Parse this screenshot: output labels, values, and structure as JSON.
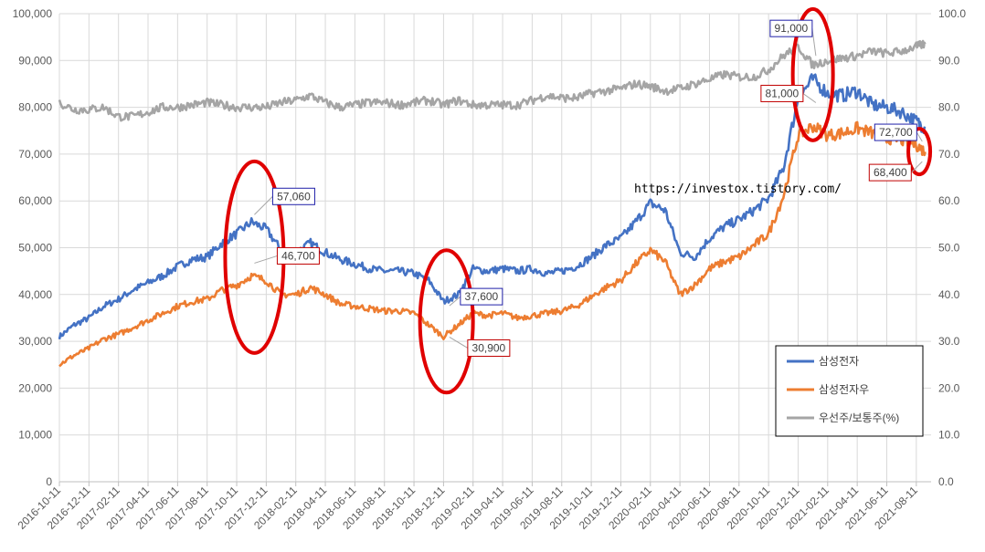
{
  "chart_data": {
    "type": "line",
    "watermark": "https://investox.tistory.com/",
    "x_ticks": [
      "2016-10-11",
      "2016-12-11",
      "2017-02-11",
      "2017-04-11",
      "2017-06-11",
      "2017-08-11",
      "2017-10-11",
      "2017-12-11",
      "2018-02-11",
      "2018-04-11",
      "2018-06-11",
      "2018-08-11",
      "2018-10-11",
      "2018-12-11",
      "2019-02-11",
      "2019-04-11",
      "2019-06-11",
      "2019-08-11",
      "2019-10-11",
      "2019-12-11",
      "2020-02-11",
      "2020-04-11",
      "2020-06-11",
      "2020-08-11",
      "2020-10-11",
      "2020-12-11",
      "2021-02-11",
      "2021-04-11",
      "2021-06-11",
      "2021-08-11"
    ],
    "y_left": {
      "min": 0,
      "max": 100000,
      "step": 10000,
      "tick_labels": [
        "0",
        "10,000",
        "20,000",
        "30,000",
        "40,000",
        "50,000",
        "60,000",
        "70,000",
        "80,000",
        "90,000",
        "100,000"
      ]
    },
    "y_right": {
      "min": 0,
      "max": 100,
      "step": 10,
      "tick_labels": [
        "0.0",
        "10.0",
        "20.0",
        "30.0",
        "40.0",
        "50.0",
        "60.0",
        "70.0",
        "80.0",
        "90.0",
        "100.0"
      ]
    },
    "grid": true,
    "legend_position": "bottom-right",
    "series": [
      {
        "name": "삼성전자",
        "axis": "left",
        "color": "#4472c4",
        "points": [
          [
            0,
            31000
          ],
          [
            0.5,
            33500
          ],
          [
            1,
            35000
          ],
          [
            1.5,
            37500
          ],
          [
            2,
            39000
          ],
          [
            2.5,
            41000
          ],
          [
            3,
            42500
          ],
          [
            3.5,
            44000
          ],
          [
            4,
            46000
          ],
          [
            4.5,
            47500
          ],
          [
            5,
            48000
          ],
          [
            5.5,
            51000
          ],
          [
            6,
            53000
          ],
          [
            6.5,
            55500
          ],
          [
            7,
            54000
          ],
          [
            7.5,
            49500
          ],
          [
            8,
            49000
          ],
          [
            8.5,
            51000
          ],
          [
            9,
            49000
          ],
          [
            9.5,
            47500
          ],
          [
            10,
            46500
          ],
          [
            10.5,
            45500
          ],
          [
            11,
            45000
          ],
          [
            11.5,
            45000
          ],
          [
            12,
            44500
          ],
          [
            12.5,
            43000
          ],
          [
            13,
            38500
          ],
          [
            13.5,
            40000
          ],
          [
            14,
            45500
          ],
          [
            14.5,
            45000
          ],
          [
            15,
            45500
          ],
          [
            15.5,
            45000
          ],
          [
            16,
            45500
          ],
          [
            16.5,
            44500
          ],
          [
            17,
            45000
          ],
          [
            17.5,
            46000
          ],
          [
            18,
            48000
          ],
          [
            18.5,
            50500
          ],
          [
            19,
            52000
          ],
          [
            19.5,
            55500
          ],
          [
            20,
            59500
          ],
          [
            20.5,
            58000
          ],
          [
            21,
            49000
          ],
          [
            21.5,
            48000
          ],
          [
            22,
            52000
          ],
          [
            22.5,
            54500
          ],
          [
            23,
            56000
          ],
          [
            23.5,
            58000
          ],
          [
            24,
            60500
          ],
          [
            24.5,
            67000
          ],
          [
            25,
            82000
          ],
          [
            25.5,
            86000
          ],
          [
            26,
            83000
          ],
          [
            26.5,
            82500
          ],
          [
            27,
            83500
          ],
          [
            27.5,
            80500
          ],
          [
            28,
            80000
          ],
          [
            28.5,
            79000
          ],
          [
            29,
            77000
          ],
          [
            29.3,
            75500
          ]
        ]
      },
      {
        "name": "삼성전자우",
        "axis": "left",
        "color": "#ed7d31",
        "points": [
          [
            0,
            25000
          ],
          [
            0.5,
            27000
          ],
          [
            1,
            28500
          ],
          [
            1.5,
            30500
          ],
          [
            2,
            31500
          ],
          [
            2.5,
            33000
          ],
          [
            3,
            34500
          ],
          [
            3.5,
            36000
          ],
          [
            4,
            37500
          ],
          [
            4.5,
            38500
          ],
          [
            5,
            39000
          ],
          [
            5.5,
            41000
          ],
          [
            6,
            42000
          ],
          [
            6.5,
            44000
          ],
          [
            7,
            43000
          ],
          [
            7.5,
            40000
          ],
          [
            8,
            40000
          ],
          [
            8.5,
            41500
          ],
          [
            9,
            40000
          ],
          [
            9.5,
            38000
          ],
          [
            10,
            37500
          ],
          [
            10.5,
            37000
          ],
          [
            11,
            36500
          ],
          [
            11.5,
            36500
          ],
          [
            12,
            36000
          ],
          [
            12.5,
            33500
          ],
          [
            13,
            31000
          ],
          [
            13.5,
            33500
          ],
          [
            14,
            36000
          ],
          [
            14.5,
            35500
          ],
          [
            15,
            36000
          ],
          [
            15.5,
            35000
          ],
          [
            16,
            35500
          ],
          [
            16.5,
            36000
          ],
          [
            17,
            36500
          ],
          [
            17.5,
            37500
          ],
          [
            18,
            39500
          ],
          [
            18.5,
            41500
          ],
          [
            19,
            43000
          ],
          [
            19.5,
            46500
          ],
          [
            20,
            49500
          ],
          [
            20.5,
            47000
          ],
          [
            21,
            40000
          ],
          [
            21.5,
            42000
          ],
          [
            22,
            45500
          ],
          [
            22.5,
            47000
          ],
          [
            23,
            48000
          ],
          [
            23.5,
            50500
          ],
          [
            24,
            53000
          ],
          [
            24.5,
            61000
          ],
          [
            25,
            74000
          ],
          [
            25.5,
            76000
          ],
          [
            26,
            74000
          ],
          [
            26.5,
            74500
          ],
          [
            27,
            75500
          ],
          [
            27.5,
            74500
          ],
          [
            28,
            73500
          ],
          [
            28.5,
            73000
          ],
          [
            29,
            72000
          ],
          [
            29.3,
            70500
          ]
        ]
      },
      {
        "name": "우선주/보통주(%)",
        "axis": "right",
        "color": "#a5a5a5",
        "points": [
          [
            0,
            81
          ],
          [
            0.5,
            79.5
          ],
          [
            1,
            79.5
          ],
          [
            1.5,
            80
          ],
          [
            2,
            78
          ],
          [
            2.5,
            78
          ],
          [
            3,
            79
          ],
          [
            3.5,
            80
          ],
          [
            4,
            80
          ],
          [
            4.5,
            80.5
          ],
          [
            5,
            81
          ],
          [
            5.5,
            80.5
          ],
          [
            6,
            80
          ],
          [
            6.5,
            80
          ],
          [
            7,
            80
          ],
          [
            7.5,
            81
          ],
          [
            8,
            81.5
          ],
          [
            8.5,
            82.5
          ],
          [
            9,
            81
          ],
          [
            9.5,
            80
          ],
          [
            10,
            80.5
          ],
          [
            10.5,
            81
          ],
          [
            11,
            81
          ],
          [
            11.5,
            80.5
          ],
          [
            12,
            81
          ],
          [
            12.5,
            81.5
          ],
          [
            13,
            80.5
          ],
          [
            13.5,
            81.5
          ],
          [
            14,
            80.5
          ],
          [
            14.5,
            80.5
          ],
          [
            15,
            80.5
          ],
          [
            15.5,
            80.5
          ],
          [
            16,
            81.5
          ],
          [
            16.5,
            82.5
          ],
          [
            17,
            82
          ],
          [
            17.5,
            82
          ],
          [
            18,
            83
          ],
          [
            18.5,
            83.5
          ],
          [
            19,
            84
          ],
          [
            19.5,
            85
          ],
          [
            20,
            84.5
          ],
          [
            20.5,
            83.5
          ],
          [
            21,
            84
          ],
          [
            21.5,
            85
          ],
          [
            22,
            86
          ],
          [
            22.5,
            87
          ],
          [
            23,
            86.5
          ],
          [
            23.5,
            86.5
          ],
          [
            24,
            88
          ],
          [
            24.5,
            91
          ],
          [
            25,
            93
          ],
          [
            25.5,
            89
          ],
          [
            26,
            90
          ],
          [
            26.5,
            90.5
          ],
          [
            27,
            91
          ],
          [
            27.5,
            92
          ],
          [
            28,
            91.5
          ],
          [
            28.5,
            92
          ],
          [
            29,
            93
          ],
          [
            29.3,
            93.5
          ]
        ]
      }
    ],
    "annotations": [
      {
        "text": "57,060",
        "series": 0,
        "x": 6.6,
        "y": 57060,
        "border": "#1f1fa8"
      },
      {
        "text": "46,700",
        "series": 1,
        "x": 6.6,
        "y": 46700,
        "border": "#c00000"
      },
      {
        "text": "37,600",
        "series": 0,
        "x": 13.2,
        "y": 37600,
        "border": "#1f1fa8"
      },
      {
        "text": "30,900",
        "series": 1,
        "x": 13.2,
        "y": 30900,
        "border": "#c00000"
      },
      {
        "text": "91,000",
        "series": 0,
        "x": 25.6,
        "y": 91000,
        "border": "#1f1fa8"
      },
      {
        "text": "81,000",
        "series": 1,
        "x": 25.6,
        "y": 81000,
        "border": "#c00000"
      },
      {
        "text": "72,700",
        "series": 0,
        "x": 29.2,
        "y": 72700,
        "border": "#1f1fa8"
      },
      {
        "text": "68,400",
        "series": 1,
        "x": 29.2,
        "y": 68400,
        "border": "#c00000"
      }
    ],
    "highlight_color": "#e00000"
  }
}
